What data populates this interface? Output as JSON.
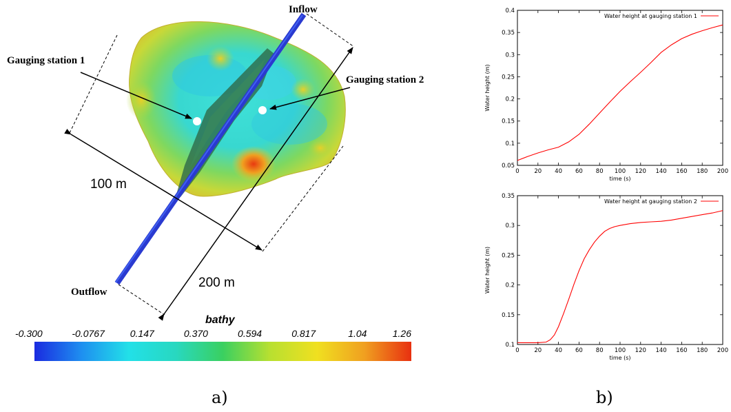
{
  "figure": {
    "panel_a_label": "a)",
    "panel_b_label": "b)",
    "labels": {
      "inflow": "Inflow",
      "outflow": "Outflow",
      "gauge1": "Gauging station 1",
      "gauge2": "Gauging station 2",
      "dim_100": "100 m",
      "dim_200": "200 m"
    },
    "colorbar": {
      "title": "bathy",
      "ticks": [
        "-0.300",
        "-0.0767",
        "0.147",
        "0.370",
        "0.594",
        "0.817",
        "1.04",
        "1.26"
      ],
      "min": -0.3,
      "max": 1.26,
      "colors": [
        "#1a2be0",
        "#1e8ff0",
        "#22e0e8",
        "#28d8c0",
        "#3ad060",
        "#b8e030",
        "#f0e020",
        "#f0a020",
        "#e83010"
      ]
    },
    "colors": {
      "channel": "#2a3ad0",
      "curve": "#ff0000"
    }
  },
  "chart_data": [
    {
      "type": "line",
      "title": "",
      "xlabel": "time (s)",
      "ylabel": "Water height (m)",
      "xlim": [
        0,
        200
      ],
      "ylim": [
        0.05,
        0.4
      ],
      "xticks": [
        "0",
        "20",
        "40",
        "60",
        "80",
        "100",
        "120",
        "140",
        "160",
        "180",
        "200"
      ],
      "yticks": [
        "0.05",
        "0.1",
        "0.15",
        "0.2",
        "0.25",
        "0.3",
        "0.35",
        "0.4"
      ],
      "legend": "top-right",
      "series": [
        {
          "name": "Water height at gauging station 1",
          "x": [
            0,
            10,
            20,
            30,
            40,
            50,
            60,
            70,
            80,
            90,
            100,
            110,
            120,
            130,
            140,
            150,
            160,
            170,
            180,
            190,
            200
          ],
          "y": [
            0.061,
            0.07,
            0.078,
            0.085,
            0.091,
            0.103,
            0.12,
            0.143,
            0.168,
            0.193,
            0.217,
            0.239,
            0.26,
            0.282,
            0.305,
            0.322,
            0.336,
            0.346,
            0.354,
            0.361,
            0.367
          ]
        }
      ]
    },
    {
      "type": "line",
      "title": "",
      "xlabel": "time (s)",
      "ylabel": "Water height (m)",
      "xlim": [
        0,
        200
      ],
      "ylim": [
        0.1,
        0.35
      ],
      "xticks": [
        "0",
        "20",
        "40",
        "60",
        "80",
        "100",
        "120",
        "140",
        "160",
        "180",
        "200"
      ],
      "yticks": [
        "0.1",
        "0.15",
        "0.2",
        "0.25",
        "0.3",
        "0.35"
      ],
      "legend": "top-right",
      "series": [
        {
          "name": "Water height at gauging station 2",
          "x": [
            0,
            10,
            20,
            28,
            32,
            36,
            40,
            45,
            50,
            55,
            60,
            65,
            70,
            75,
            80,
            85,
            90,
            95,
            100,
            110,
            120,
            130,
            140,
            150,
            160,
            170,
            180,
            190,
            200
          ],
          "y": [
            0.103,
            0.103,
            0.103,
            0.104,
            0.108,
            0.116,
            0.13,
            0.152,
            0.176,
            0.201,
            0.224,
            0.244,
            0.259,
            0.272,
            0.282,
            0.29,
            0.295,
            0.298,
            0.3,
            0.303,
            0.305,
            0.306,
            0.307,
            0.309,
            0.312,
            0.315,
            0.318,
            0.321,
            0.325
          ]
        }
      ]
    }
  ]
}
